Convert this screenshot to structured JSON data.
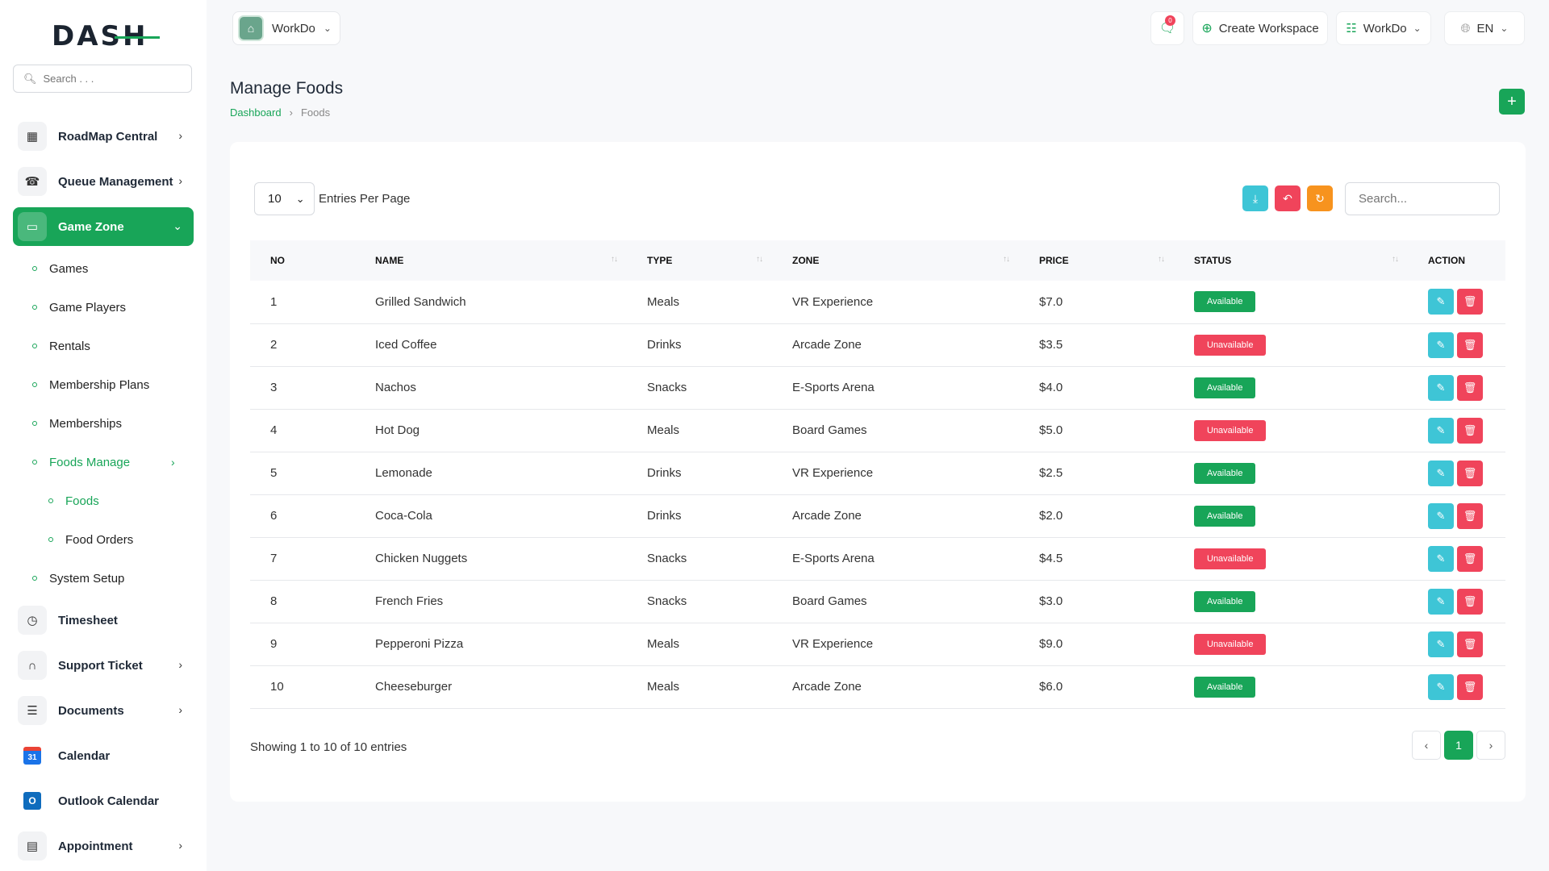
{
  "brand": {
    "logo_text": "DASH"
  },
  "sidebar": {
    "search_placeholder": "Search . . .",
    "items": [
      {
        "label": "RoadMap Central",
        "icon": "map-icon"
      },
      {
        "label": "Queue Management",
        "icon": "phone-icon"
      },
      {
        "label": "Game Zone",
        "icon": "gamepad-icon"
      },
      {
        "label": "Timesheet",
        "icon": "clock-icon"
      },
      {
        "label": "Support Ticket",
        "icon": "headset-icon"
      },
      {
        "label": "Documents",
        "icon": "document-icon"
      },
      {
        "label": "Calendar",
        "icon": "calendar-icon"
      },
      {
        "label": "Outlook Calendar",
        "icon": "outlook-icon"
      },
      {
        "label": "Appointment",
        "icon": "appointment-icon"
      }
    ],
    "game_zone_sub": [
      "Games",
      "Game Players",
      "Rentals",
      "Membership Plans",
      "Memberships",
      "Foods Manage",
      "System Setup"
    ],
    "foods_sub": [
      "Foods",
      "Food Orders"
    ],
    "calendar_day": "31",
    "outlook_letter": "O"
  },
  "header": {
    "workspace": "WorkDo",
    "notification_count": "0",
    "create_workspace": "Create Workspace",
    "workspace_menu": "WorkDo",
    "language": "EN"
  },
  "page": {
    "title": "Manage Foods",
    "breadcrumb_home": "Dashboard",
    "breadcrumb_current": "Foods"
  },
  "table": {
    "entries_value": "10",
    "entries_label": "Entries Per Page",
    "search_placeholder": "Search...",
    "columns": [
      "NO",
      "NAME",
      "TYPE",
      "ZONE",
      "PRICE",
      "STATUS",
      "ACTION"
    ],
    "rows": [
      {
        "no": "1",
        "name": "Grilled Sandwich",
        "type": "Meals",
        "zone": "VR Experience",
        "price": "$7.0",
        "status": "Available"
      },
      {
        "no": "2",
        "name": "Iced Coffee",
        "type": "Drinks",
        "zone": "Arcade Zone",
        "price": "$3.5",
        "status": "Unavailable"
      },
      {
        "no": "3",
        "name": "Nachos",
        "type": "Snacks",
        "zone": "E-Sports Arena",
        "price": "$4.0",
        "status": "Available"
      },
      {
        "no": "4",
        "name": "Hot Dog",
        "type": "Meals",
        "zone": "Board Games",
        "price": "$5.0",
        "status": "Unavailable"
      },
      {
        "no": "5",
        "name": "Lemonade",
        "type": "Drinks",
        "zone": "VR Experience",
        "price": "$2.5",
        "status": "Available"
      },
      {
        "no": "6",
        "name": "Coca-Cola",
        "type": "Drinks",
        "zone": "Arcade Zone",
        "price": "$2.0",
        "status": "Available"
      },
      {
        "no": "7",
        "name": "Chicken Nuggets",
        "type": "Snacks",
        "zone": "E-Sports Arena",
        "price": "$4.5",
        "status": "Unavailable"
      },
      {
        "no": "8",
        "name": "French Fries",
        "type": "Snacks",
        "zone": "Board Games",
        "price": "$3.0",
        "status": "Available"
      },
      {
        "no": "9",
        "name": "Pepperoni Pizza",
        "type": "Meals",
        "zone": "VR Experience",
        "price": "$9.0",
        "status": "Unavailable"
      },
      {
        "no": "10",
        "name": "Cheeseburger",
        "type": "Meals",
        "zone": "Arcade Zone",
        "price": "$6.0",
        "status": "Available"
      }
    ],
    "showing": "Showing 1 to 10 of 10 entries",
    "current_page": "1"
  },
  "colors": {
    "accent": "#18a558",
    "danger": "#f0445b",
    "info": "#3ec5d6",
    "warning": "#f7931e"
  }
}
